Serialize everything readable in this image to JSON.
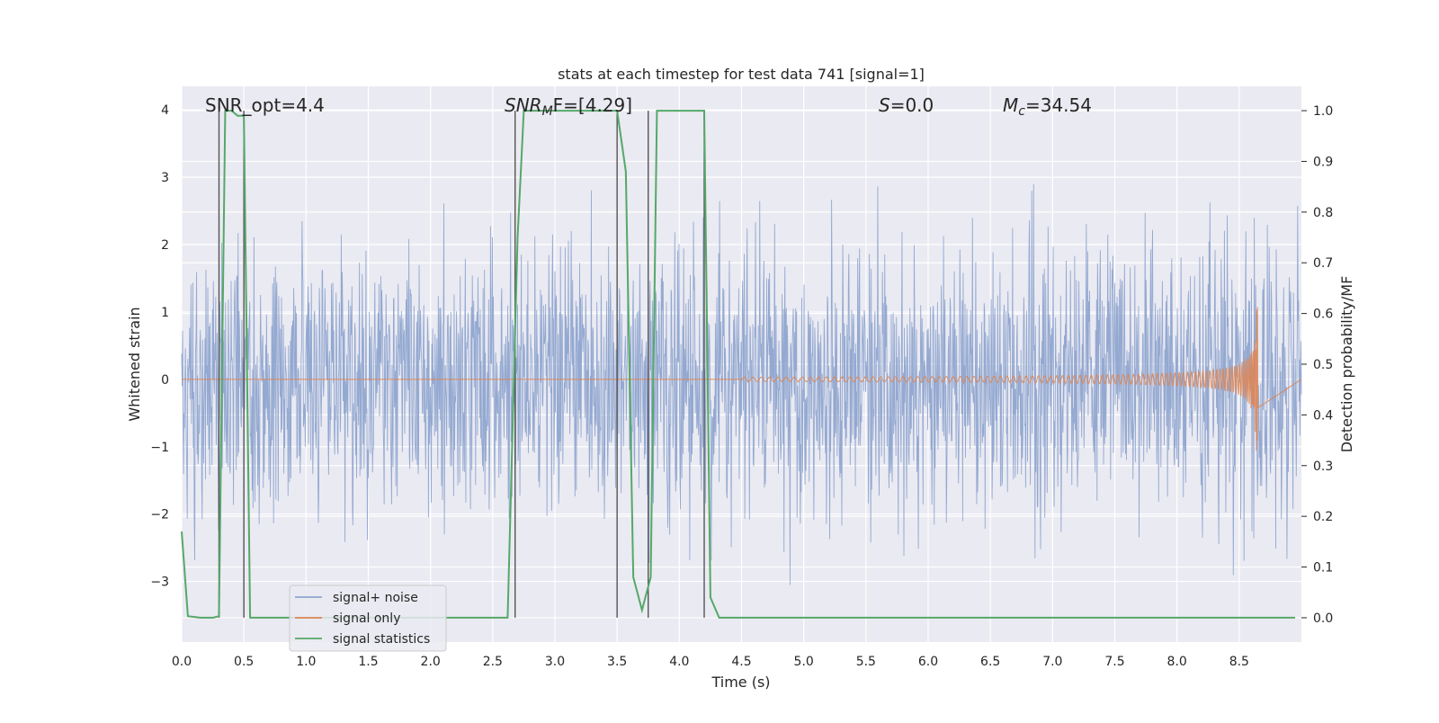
{
  "chart_data": {
    "type": "line",
    "title": "stats at each timestep for test data 741 [signal=1]",
    "xlabel": "Time (s)",
    "ylabel_left": "Whitened strain",
    "ylabel_right": "Detection probability/MF",
    "xlim": [
      0.0,
      9.0
    ],
    "ylim_left": [
      -3.9,
      4.35
    ],
    "ylim_right": [
      -0.048,
      1.048
    ],
    "x_ticks": [
      "0.0",
      "0.5",
      "1.0",
      "1.5",
      "2.0",
      "2.5",
      "3.0",
      "3.5",
      "4.0",
      "4.5",
      "5.0",
      "5.5",
      "6.0",
      "6.5",
      "7.0",
      "7.5",
      "8.0",
      "8.5"
    ],
    "y_left_ticks": [
      "−3",
      "−2",
      "−1",
      "0",
      "1",
      "2",
      "3",
      "4"
    ],
    "y_right_ticks": [
      "0.0",
      "0.1",
      "0.2",
      "0.3",
      "0.4",
      "0.5",
      "0.6",
      "0.7",
      "0.8",
      "0.9",
      "1.0"
    ],
    "grid": true,
    "legend_position": "lower-left",
    "annotations": {
      "snr_opt": "SNR_opt=4.4",
      "snr_mf_sym": "SNR",
      "snr_mf_sub": "M",
      "snr_mf_rest": "F=[4.29]",
      "s_sym": "S",
      "s_rest": "=0.0",
      "mc_sym": "M",
      "mc_sub": "c",
      "mc_rest": "=34.54"
    },
    "vertical_markers_s": [
      0.3,
      0.5,
      2.68,
      3.5,
      3.75,
      4.2
    ],
    "series": [
      {
        "name": "signal+ noise",
        "color": "#8fa5cf",
        "description_values": "noise, whitened strain roughly within [-3.6, 4.0]"
      },
      {
        "name": "signal only",
        "color": "#dd8452",
        "chirp_end_s": 8.65,
        "chirp_peak_amplitude": 1.1
      },
      {
        "name": "signal statistics",
        "color": "#55a868",
        "axis": "right",
        "x": [
          0.0,
          0.05,
          0.15,
          0.25,
          0.3,
          0.35,
          0.4,
          0.45,
          0.5,
          0.55,
          0.6,
          1.0,
          1.5,
          2.0,
          2.5,
          2.62,
          2.7,
          2.75,
          2.8,
          3.0,
          3.3,
          3.5,
          3.57,
          3.63,
          3.7,
          3.77,
          3.82,
          3.9,
          4.2,
          4.25,
          4.32,
          5.0,
          6.0,
          7.0,
          8.0,
          8.5,
          8.95
        ],
        "y": [
          0.17,
          0.003,
          0.0,
          0.0,
          0.003,
          1.0,
          1.0,
          0.99,
          0.99,
          0.0,
          0.0,
          0.0,
          0.0,
          0.0,
          0.0,
          0.0,
          0.75,
          1.0,
          1.0,
          1.0,
          1.0,
          1.0,
          0.88,
          0.08,
          0.015,
          0.08,
          1.0,
          1.0,
          1.0,
          0.04,
          0.0,
          0.0,
          0.0,
          0.0,
          0.0,
          0.0,
          0.0
        ]
      }
    ]
  }
}
